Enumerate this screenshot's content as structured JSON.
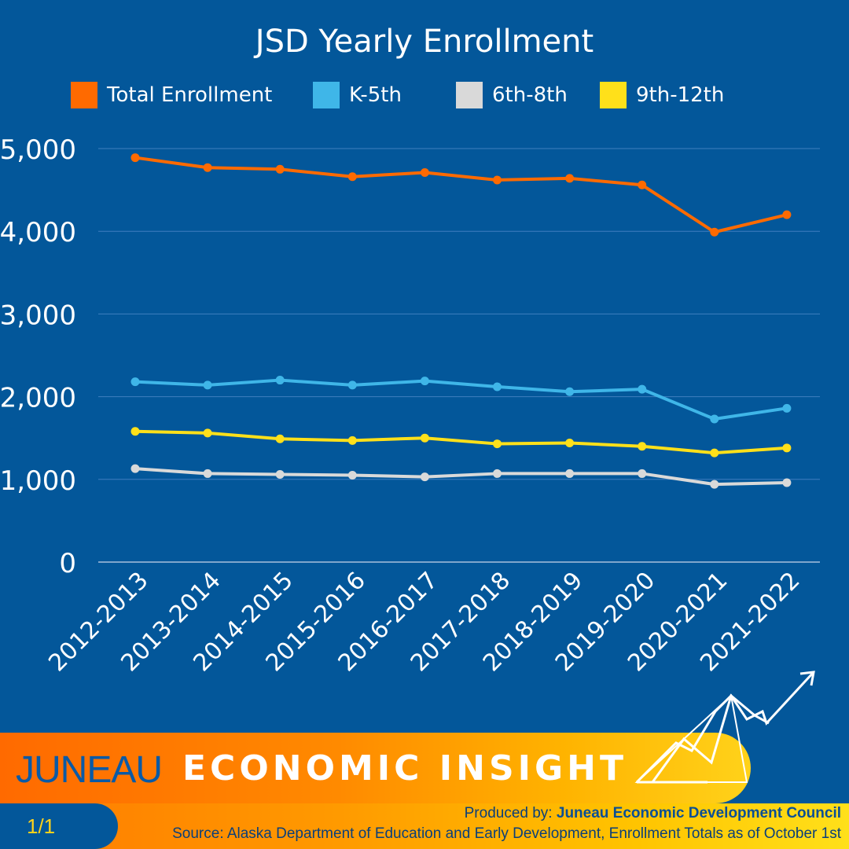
{
  "chart_data": {
    "type": "line",
    "title": "JSD Yearly Enrollment",
    "xlabel": "",
    "ylabel": "",
    "ylim": [
      0,
      5000
    ],
    "yticks": [
      0,
      1000,
      2000,
      3000,
      4000,
      5000
    ],
    "ytick_labels": [
      "0",
      "1,000",
      "2,000",
      "3,000",
      "4,000",
      "5,000"
    ],
    "grid": true,
    "legend_position": "top",
    "categories": [
      "2012-2013",
      "2013-2014",
      "2014-2015",
      "2015-2016",
      "2016-2017",
      "2017-2018",
      "2018-2019",
      "2019-2020",
      "2020-2021",
      "2021-2022"
    ],
    "series": [
      {
        "name": "Total Enrollment",
        "color": "#ff6a00",
        "values": [
          4890,
          4770,
          4750,
          4660,
          4710,
          4620,
          4640,
          4560,
          3990,
          4200
        ]
      },
      {
        "name": "K-5th",
        "color": "#3fb6e8",
        "values": [
          2180,
          2140,
          2200,
          2140,
          2190,
          2120,
          2060,
          2090,
          1730,
          1860
        ]
      },
      {
        "name": "6th-8th",
        "color": "#d9d9d9",
        "values": [
          1130,
          1070,
          1060,
          1050,
          1030,
          1070,
          1070,
          1070,
          940,
          960
        ]
      },
      {
        "name": "9th-12th",
        "color": "#ffe01a",
        "values": [
          1580,
          1560,
          1490,
          1470,
          1500,
          1430,
          1440,
          1400,
          1320,
          1380
        ]
      }
    ]
  },
  "footer": {
    "brand_name": "JUNEAU",
    "brand_tagline": "ECONOMIC INSIGHT",
    "page_indicator": "1/1",
    "produced_label": "Produced by:",
    "producer": "Juneau Economic Development Council",
    "source": "Source:  Alaska Department of Education and Early Development, Enrollment Totals as of October 1st"
  },
  "logo_icon": "rising-chart-arrow-icon"
}
